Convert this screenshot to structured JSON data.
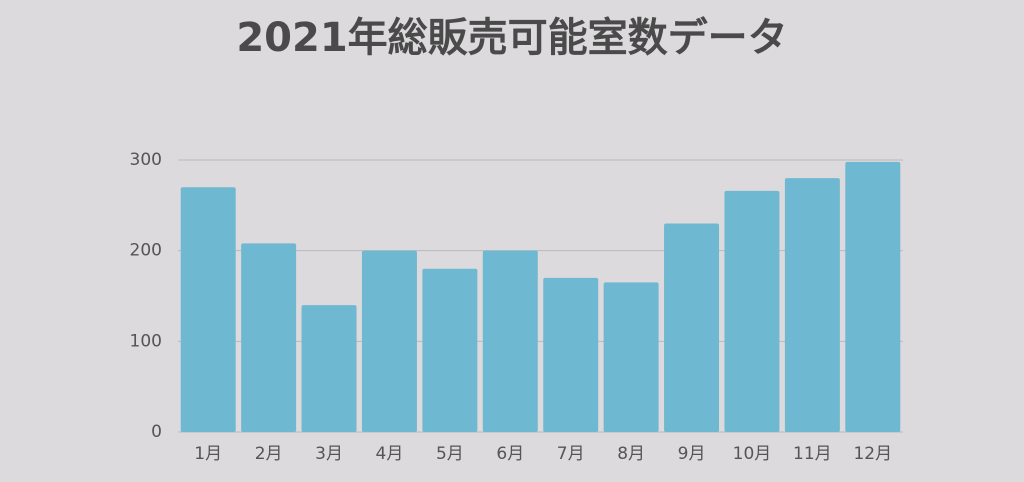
{
  "chart_data": {
    "type": "bar",
    "title": "2021年総販売可能室数データ",
    "categories": [
      "1月",
      "2月",
      "3月",
      "4月",
      "5月",
      "6月",
      "7月",
      "8月",
      "9月",
      "10月",
      "11月",
      "12月"
    ],
    "values": [
      270,
      208,
      140,
      200,
      180,
      200,
      170,
      165,
      230,
      266,
      280,
      298
    ],
    "color": "#6fb8d2",
    "ylim": [
      0,
      300
    ],
    "yticks": [
      0,
      100,
      200,
      300
    ],
    "grid": true
  }
}
